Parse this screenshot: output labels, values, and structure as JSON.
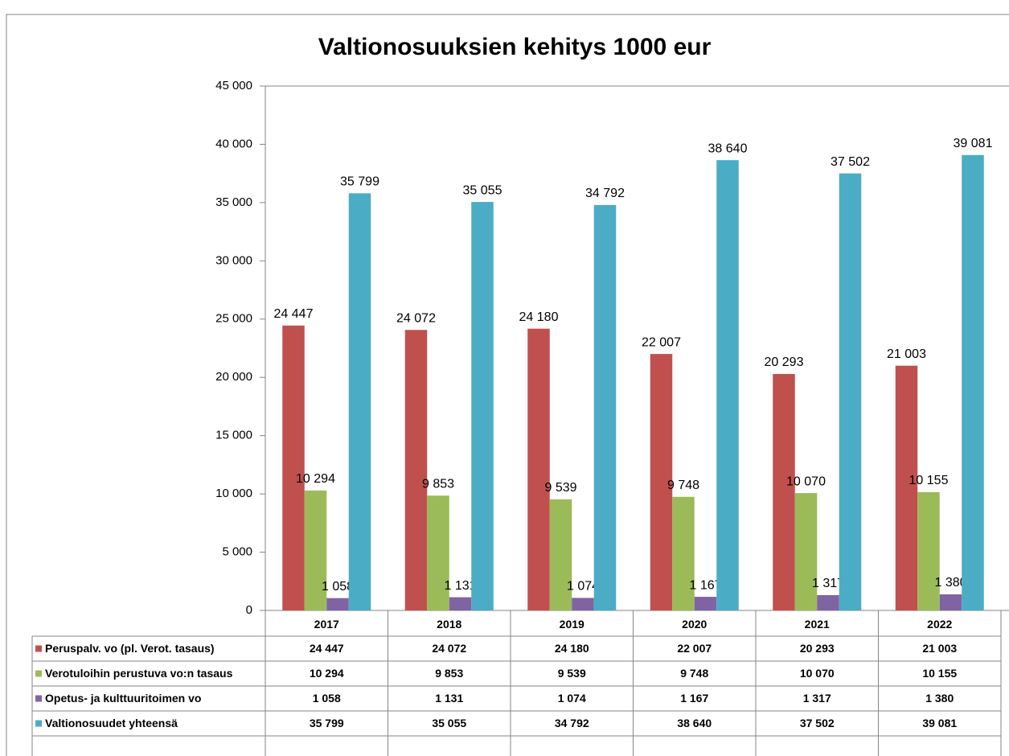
{
  "chart_data": {
    "type": "bar",
    "title": "Valtionosuuksien kehitys 1000 eur",
    "categories": [
      "2017",
      "2018",
      "2019",
      "2020",
      "2021",
      "2022"
    ],
    "series": [
      {
        "name": "Peruspalv. vo (pl.  Verot. tasaus)",
        "color": "#c0504d",
        "values": [
          24447,
          24072,
          24180,
          22007,
          20293,
          21003
        ],
        "value_labels": [
          "24 447",
          "24 072",
          "24 180",
          "22 007",
          "20 293",
          "21 003"
        ]
      },
      {
        "name": "Verotuloihin perustuva vo:n tasaus",
        "color": "#9bbb59",
        "values": [
          10294,
          9853,
          9539,
          9748,
          10070,
          10155
        ],
        "value_labels": [
          "10 294",
          "9 853",
          "9 539",
          "9 748",
          "10 070",
          "10 155"
        ]
      },
      {
        "name": "Opetus- ja kulttuuritoimen vo",
        "color": "#8064a2",
        "values": [
          1058,
          1131,
          1074,
          1167,
          1317,
          1380
        ],
        "value_labels": [
          "1 058",
          "1 131",
          "1 074",
          "1 167",
          "1 317",
          "1 380"
        ]
      },
      {
        "name": "Valtionosuudet yhteensä",
        "color": "#4bacc6",
        "values": [
          35799,
          35055,
          34792,
          38640,
          37502,
          39081
        ],
        "value_labels": [
          "35 799",
          "35 055",
          "34 792",
          "38 640",
          "37 502",
          "39 081"
        ]
      }
    ],
    "ylim": [
      0,
      45000
    ],
    "yticks": [
      0,
      {
        "value": 5000,
        "label": "5 000"
      },
      {
        "value": 10000,
        "label": "10 000"
      },
      {
        "value": 15000,
        "label": "15 000"
      },
      {
        "value": 20000,
        "label": "20 000"
      },
      {
        "value": 25000,
        "label": "25 000"
      },
      {
        "value": 30000,
        "label": "30 000"
      },
      {
        "value": 35000,
        "label": "35 000"
      },
      {
        "value": 40000,
        "label": "40 000"
      },
      {
        "value": 45000,
        "label": "45 000"
      }
    ],
    "grid": false
  }
}
